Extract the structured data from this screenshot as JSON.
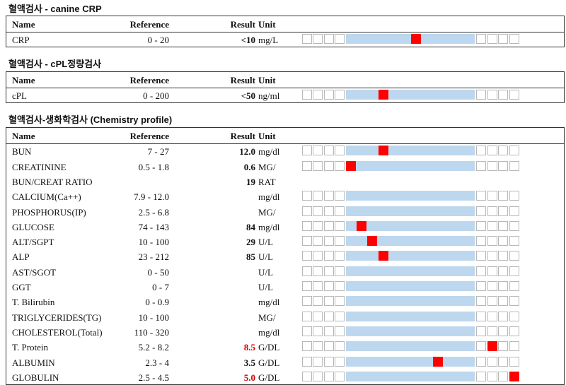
{
  "sections": [
    {
      "title": "혈액검사 - canine CRP",
      "headers": {
        "name": "Name",
        "reference": "Reference",
        "result": "Result",
        "unit": "Unit"
      },
      "rows": [
        {
          "name": "CRP",
          "reference": "0 - 20",
          "result": "<10",
          "unit": "mg/L",
          "flag": "normal",
          "marker_cell": 10
        }
      ]
    },
    {
      "title": "혈액검사 - cPL정량검사",
      "headers": {
        "name": "Name",
        "reference": "Reference",
        "result": "Result",
        "unit": "Unit"
      },
      "rows": [
        {
          "name": "cPL",
          "reference": "0 - 200",
          "result": "<50",
          "unit": "ng/ml",
          "flag": "normal",
          "marker_cell": 7
        }
      ]
    },
    {
      "title": "혈액검사-생화학검사 (Chemistry profile)",
      "headers": {
        "name": "Name",
        "reference": "Reference",
        "result": "Result",
        "unit": "Unit"
      },
      "rows": [
        {
          "name": "BUN",
          "reference": "7 - 27",
          "result": "12.0",
          "unit": "mg/dl",
          "flag": "normal",
          "marker_cell": 7
        },
        {
          "name": "CREATININE",
          "reference": "0.5 - 1.8",
          "result": "0.6",
          "unit": "MG/",
          "flag": "normal",
          "marker_cell": 4
        },
        {
          "name": "BUN/CREAT RATIO",
          "reference": "",
          "result": "19",
          "unit": "RAT",
          "flag": "none",
          "marker_cell": null
        },
        {
          "name": "CALCIUM(Ca++)",
          "reference": "7.9 - 12.0",
          "result": "",
          "unit": "mg/dl",
          "flag": "normal",
          "marker_cell": null
        },
        {
          "name": "PHOSPHORUS(IP)",
          "reference": "2.5 - 6.8",
          "result": "",
          "unit": "MG/",
          "flag": "normal",
          "marker_cell": null
        },
        {
          "name": "GLUCOSE",
          "reference": "74 - 143",
          "result": "84",
          "unit": "mg/dl",
          "flag": "normal",
          "marker_cell": 5
        },
        {
          "name": "ALT/SGPT",
          "reference": "10 - 100",
          "result": "29",
          "unit": "U/L",
          "flag": "normal",
          "marker_cell": 6
        },
        {
          "name": "ALP",
          "reference": "23 - 212",
          "result": "85",
          "unit": "U/L",
          "flag": "normal",
          "marker_cell": 7
        },
        {
          "name": "AST/SGOT",
          "reference": "0 - 50",
          "result": "",
          "unit": "U/L",
          "flag": "normal",
          "marker_cell": null
        },
        {
          "name": "GGT",
          "reference": "0 - 7",
          "result": "",
          "unit": "U/L",
          "flag": "normal",
          "marker_cell": null
        },
        {
          "name": "T. Bilirubin",
          "reference": "0 - 0.9",
          "result": "",
          "unit": "mg/dl",
          "flag": "normal",
          "marker_cell": null
        },
        {
          "name": "TRIGLYCERIDES(TG)",
          "reference": "10 - 100",
          "result": "",
          "unit": "MG/",
          "flag": "normal",
          "marker_cell": null
        },
        {
          "name": "CHOLESTEROL(Total)",
          "reference": "110 - 320",
          "result": "",
          "unit": "mg/dl",
          "flag": "normal",
          "marker_cell": null
        },
        {
          "name": "T. Protein",
          "reference": "5.2 - 8.2",
          "result": "8.5",
          "unit": "G/DL",
          "flag": "high",
          "marker_cell": 17
        },
        {
          "name": "ALBUMIN",
          "reference": "2.3 - 4",
          "result": "3.5",
          "unit": "G/DL",
          "flag": "normal",
          "marker_cell": 12
        },
        {
          "name": "GLOBULIN",
          "reference": "2.5 - 4.5",
          "result": "5.0",
          "unit": "G/DL",
          "flag": "high",
          "marker_cell": 19
        }
      ]
    }
  ],
  "colors": {
    "reference_band": "#bdd7ee",
    "marker": "#ff0000",
    "high_result": "#d00000"
  }
}
